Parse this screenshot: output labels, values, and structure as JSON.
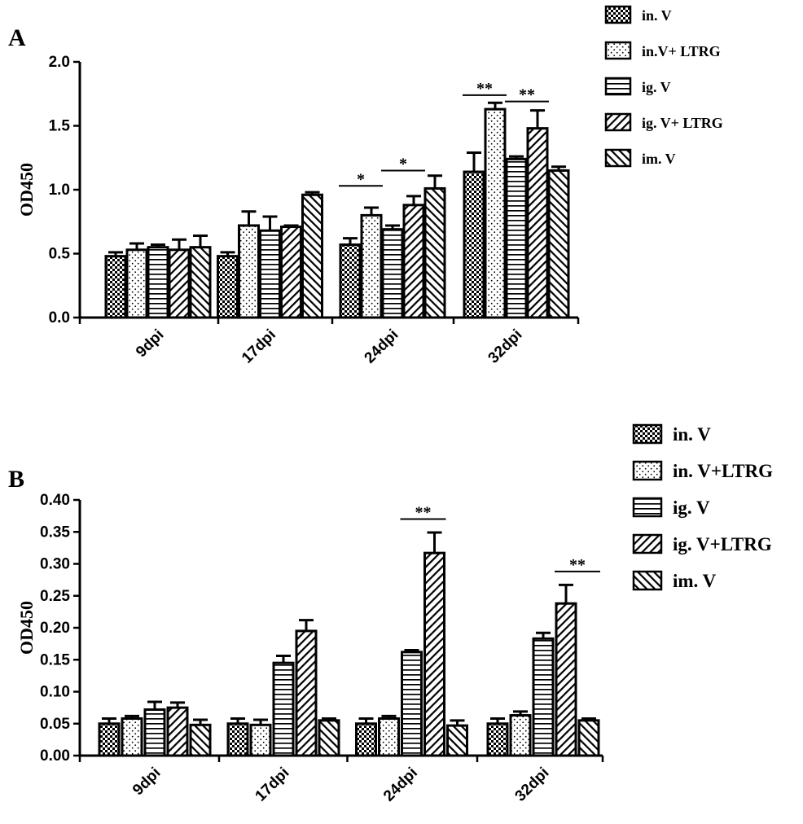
{
  "chart_data": [
    {
      "type": "bar",
      "panel": "A",
      "ylabel": "OD450",
      "xlabel": "",
      "ylim": [
        0,
        2.0
      ],
      "yticks": [
        "0.0",
        "0.5",
        "1.0",
        "1.5",
        "2.0"
      ],
      "categories": [
        "9dpi",
        "17dpi",
        "24dpi",
        "32dpi"
      ],
      "series": [
        {
          "name": "in. V",
          "pattern": "check",
          "values": [
            0.48,
            0.48,
            0.57,
            1.14
          ],
          "errors": [
            0.03,
            0.03,
            0.05,
            0.15
          ]
        },
        {
          "name": "in.V+ LTRG",
          "pattern": "dots",
          "values": [
            0.53,
            0.72,
            0.8,
            1.63
          ],
          "errors": [
            0.05,
            0.11,
            0.06,
            0.05
          ]
        },
        {
          "name": "ig. V",
          "pattern": "hlines",
          "values": [
            0.55,
            0.68,
            0.69,
            1.24
          ],
          "errors": [
            0.02,
            0.11,
            0.03,
            0.02
          ]
        },
        {
          "name": "ig. V+ LTRG",
          "pattern": "diag-back",
          "values": [
            0.53,
            0.71,
            0.88,
            1.48
          ],
          "errors": [
            0.08,
            0.01,
            0.07,
            0.14
          ]
        },
        {
          "name": "im. V",
          "pattern": "diag-fwd",
          "values": [
            0.55,
            0.96,
            1.01,
            1.15
          ],
          "errors": [
            0.09,
            0.02,
            0.1,
            0.03
          ]
        }
      ],
      "significance": [
        {
          "category": "24dpi",
          "from_series": 0,
          "to_series": 1,
          "label": "*",
          "y": 1.03
        },
        {
          "category": "24dpi",
          "from_series": 2,
          "to_series": 3,
          "label": "*",
          "y": 1.15
        },
        {
          "category": "32dpi",
          "from_series": 0,
          "to_series": 1,
          "label": "**",
          "y": 1.74
        },
        {
          "category": "32dpi",
          "from_series": 2,
          "to_series": 3,
          "label": "**",
          "y": 1.69
        }
      ]
    },
    {
      "type": "bar",
      "panel": "B",
      "ylabel": "OD450",
      "xlabel": "",
      "ylim": [
        0,
        0.4
      ],
      "yticks": [
        "0.00",
        "0.05",
        "0.10",
        "0.15",
        "0.20",
        "0.25",
        "0.30",
        "0.35",
        "0.40"
      ],
      "categories": [
        "9dpi",
        "17dpi",
        "24dpi",
        "32dpi"
      ],
      "series": [
        {
          "name": "in. V",
          "pattern": "check",
          "values": [
            0.05,
            0.05,
            0.05,
            0.05
          ],
          "errors": [
            0.008,
            0.008,
            0.008,
            0.008
          ]
        },
        {
          "name": "in. V+LTRG",
          "pattern": "dots",
          "values": [
            0.058,
            0.048,
            0.058,
            0.063
          ],
          "errors": [
            0.004,
            0.008,
            0.004,
            0.006
          ]
        },
        {
          "name": "ig. V",
          "pattern": "hlines",
          "values": [
            0.072,
            0.145,
            0.162,
            0.183
          ],
          "errors": [
            0.012,
            0.011,
            0.003,
            0.009
          ]
        },
        {
          "name": "ig. V+LTRG",
          "pattern": "diag-back",
          "values": [
            0.075,
            0.195,
            0.317,
            0.238
          ],
          "errors": [
            0.008,
            0.017,
            0.032,
            0.029
          ]
        },
        {
          "name": "im. V",
          "pattern": "diag-fwd",
          "values": [
            0.048,
            0.055,
            0.047,
            0.055
          ],
          "errors": [
            0.008,
            0.003,
            0.008,
            0.003
          ]
        }
      ],
      "significance": [
        {
          "category": "24dpi",
          "from_series": 2,
          "to_series": 3,
          "label": "**",
          "y": 0.37
        },
        {
          "category": "32dpi",
          "from_series": 3,
          "to_series": 4,
          "label": "**",
          "y": 0.288
        }
      ]
    }
  ],
  "figure": {
    "panel_a_label": "A",
    "panel_b_label": "B"
  }
}
